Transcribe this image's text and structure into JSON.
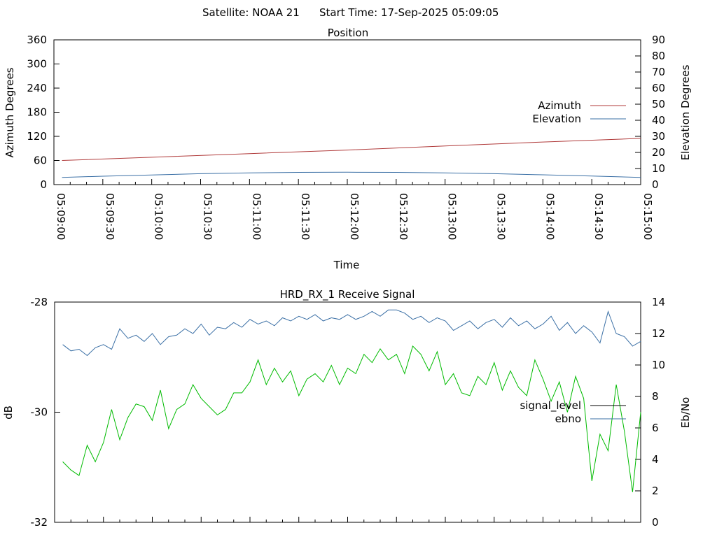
{
  "header": {
    "satellite_text": "Satellite: NOAA 21",
    "start_time_text": "Start Time: 17-Sep-2025 05:09:05"
  },
  "chart_data": [
    {
      "type": "line",
      "title": "Position",
      "xlabel": "Time",
      "ylabel": "Azimuth Degrees",
      "y2label": "Elevation Degrees",
      "x_range": [
        "05:09:00",
        "05:15:00"
      ],
      "x_tick_labels": [
        "05:09:00",
        "05:09:30",
        "05:10:00",
        "05:10:30",
        "05:11:00",
        "05:11:30",
        "05:12:00",
        "05:12:30",
        "05:13:00",
        "05:13:30",
        "05:14:00",
        "05:14:30",
        "05:15:00"
      ],
      "ylim": [
        0,
        360
      ],
      "y_ticks": [
        0,
        60,
        120,
        180,
        240,
        300,
        360
      ],
      "y2lim": [
        0,
        90
      ],
      "y2_ticks": [
        0,
        10,
        20,
        30,
        40,
        50,
        60,
        70,
        80,
        90
      ],
      "legend_position": "right",
      "grid": false,
      "series": [
        {
          "name": "Azimuth",
          "axis": "left",
          "color": "#b03a3a",
          "x": [
            "05:09:05",
            "05:10:00",
            "05:11:00",
            "05:12:00",
            "05:13:00",
            "05:14:00",
            "05:15:00"
          ],
          "values": [
            60,
            68,
            77,
            86,
            96,
            106,
            115
          ]
        },
        {
          "name": "Elevation",
          "axis": "right",
          "color": "#3a6fa5",
          "x": [
            "05:09:05",
            "05:09:30",
            "05:10:00",
            "05:10:30",
            "05:11:00",
            "05:11:30",
            "05:12:00",
            "05:12:30",
            "05:13:00",
            "05:13:30",
            "05:14:00",
            "05:14:30",
            "05:15:00"
          ],
          "values": [
            4.5,
            5.2,
            6.0,
            6.8,
            7.3,
            7.6,
            7.7,
            7.6,
            7.3,
            6.8,
            6.1,
            5.3,
            4.5
          ]
        }
      ]
    },
    {
      "type": "line",
      "title": "HRD_RX_1 Receive Signal",
      "ylabel": "dB",
      "y2label": "Eb/No",
      "ylim": [
        -32,
        -28
      ],
      "y_ticks": [
        -32,
        -30,
        -28
      ],
      "y2lim": [
        0,
        14
      ],
      "y2_ticks": [
        0,
        2,
        4,
        6,
        8,
        10,
        12,
        14
      ],
      "x_range": [
        "05:09:00",
        "05:15:00"
      ],
      "legend_position": "right",
      "grid": false,
      "series": [
        {
          "name": "signal_level",
          "axis": "left",
          "color": "#00bb00",
          "legend_color": "#000000",
          "x": [
            "05:09:05",
            "05:09:10",
            "05:09:15",
            "05:09:20",
            "05:09:25",
            "05:09:30",
            "05:09:35",
            "05:09:40",
            "05:09:45",
            "05:09:50",
            "05:09:55",
            "05:10:00",
            "05:10:05",
            "05:10:10",
            "05:10:15",
            "05:10:20",
            "05:10:25",
            "05:10:30",
            "05:10:35",
            "05:10:40",
            "05:10:45",
            "05:10:50",
            "05:10:55",
            "05:11:00",
            "05:11:05",
            "05:11:10",
            "05:11:15",
            "05:11:20",
            "05:11:25",
            "05:11:30",
            "05:11:35",
            "05:11:40",
            "05:11:45",
            "05:11:50",
            "05:11:55",
            "05:12:00",
            "05:12:05",
            "05:12:10",
            "05:12:15",
            "05:12:20",
            "05:12:25",
            "05:12:30",
            "05:12:35",
            "05:12:40",
            "05:12:45",
            "05:12:50",
            "05:12:55",
            "05:13:00",
            "05:13:05",
            "05:13:10",
            "05:13:15",
            "05:13:20",
            "05:13:25",
            "05:13:30",
            "05:13:35",
            "05:13:40",
            "05:13:45",
            "05:13:50",
            "05:13:55",
            "05:14:00",
            "05:14:05",
            "05:14:10",
            "05:14:15",
            "05:14:20",
            "05:14:25",
            "05:14:30",
            "05:14:35",
            "05:14:40",
            "05:14:45",
            "05:14:50",
            "05:14:55",
            "05:15:00"
          ],
          "values": [
            -30.9,
            -31.05,
            -31.15,
            -30.6,
            -30.9,
            -30.55,
            -29.95,
            -30.5,
            -30.1,
            -29.85,
            -29.9,
            -30.15,
            -29.6,
            -30.3,
            -29.95,
            -29.85,
            -29.5,
            -29.75,
            -29.9,
            -30.05,
            -29.95,
            -29.65,
            -29.65,
            -29.45,
            -29.05,
            -29.5,
            -29.2,
            -29.45,
            -29.25,
            -29.7,
            -29.4,
            -29.3,
            -29.45,
            -29.15,
            -29.5,
            -29.2,
            -29.3,
            -28.95,
            -29.1,
            -28.85,
            -29.05,
            -28.95,
            -29.3,
            -28.8,
            -28.95,
            -29.25,
            -28.9,
            -29.5,
            -29.3,
            -29.65,
            -29.7,
            -29.35,
            -29.5,
            -29.1,
            -29.6,
            -29.25,
            -29.55,
            -29.7,
            -29.05,
            -29.4,
            -29.8,
            -29.45,
            -30.0,
            -29.35,
            -29.75,
            -31.25,
            -30.4,
            -30.7,
            -29.5,
            -30.35,
            -31.45,
            -30.0
          ]
        },
        {
          "name": "ebno",
          "axis": "right",
          "color": "#3a6fa5",
          "x": [
            "05:09:05",
            "05:09:10",
            "05:09:15",
            "05:09:20",
            "05:09:25",
            "05:09:30",
            "05:09:35",
            "05:09:40",
            "05:09:45",
            "05:09:50",
            "05:09:55",
            "05:10:00",
            "05:10:05",
            "05:10:10",
            "05:10:15",
            "05:10:20",
            "05:10:25",
            "05:10:30",
            "05:10:35",
            "05:10:40",
            "05:10:45",
            "05:10:50",
            "05:10:55",
            "05:11:00",
            "05:11:05",
            "05:11:10",
            "05:11:15",
            "05:11:20",
            "05:11:25",
            "05:11:30",
            "05:11:35",
            "05:11:40",
            "05:11:45",
            "05:11:50",
            "05:11:55",
            "05:12:00",
            "05:12:05",
            "05:12:10",
            "05:12:15",
            "05:12:20",
            "05:12:25",
            "05:12:30",
            "05:12:35",
            "05:12:40",
            "05:12:45",
            "05:12:50",
            "05:12:55",
            "05:13:00",
            "05:13:05",
            "05:13:10",
            "05:13:15",
            "05:13:20",
            "05:13:25",
            "05:13:30",
            "05:13:35",
            "05:13:40",
            "05:13:45",
            "05:13:50",
            "05:13:55",
            "05:14:00",
            "05:14:05",
            "05:14:10",
            "05:14:15",
            "05:14:20",
            "05:14:25",
            "05:14:30",
            "05:14:35",
            "05:14:40",
            "05:14:45",
            "05:14:50",
            "05:14:55",
            "05:15:00"
          ],
          "values": [
            11.3,
            10.9,
            11.0,
            10.6,
            11.1,
            11.3,
            11.0,
            12.3,
            11.7,
            11.9,
            11.5,
            12.0,
            11.3,
            11.8,
            11.9,
            12.3,
            12.0,
            12.6,
            11.9,
            12.4,
            12.3,
            12.7,
            12.4,
            12.9,
            12.6,
            12.8,
            12.5,
            13.0,
            12.8,
            13.1,
            12.9,
            13.2,
            12.8,
            13.0,
            12.9,
            13.2,
            12.9,
            13.1,
            13.4,
            13.1,
            13.5,
            13.5,
            13.3,
            12.9,
            13.1,
            12.7,
            13.0,
            12.8,
            12.2,
            12.5,
            12.8,
            12.3,
            12.7,
            12.9,
            12.4,
            13.0,
            12.5,
            12.8,
            12.3,
            12.6,
            13.1,
            12.2,
            12.7,
            12.0,
            12.5,
            12.1,
            11.4,
            13.4,
            12.0,
            11.8,
            11.2,
            11.5
          ]
        }
      ]
    }
  ]
}
